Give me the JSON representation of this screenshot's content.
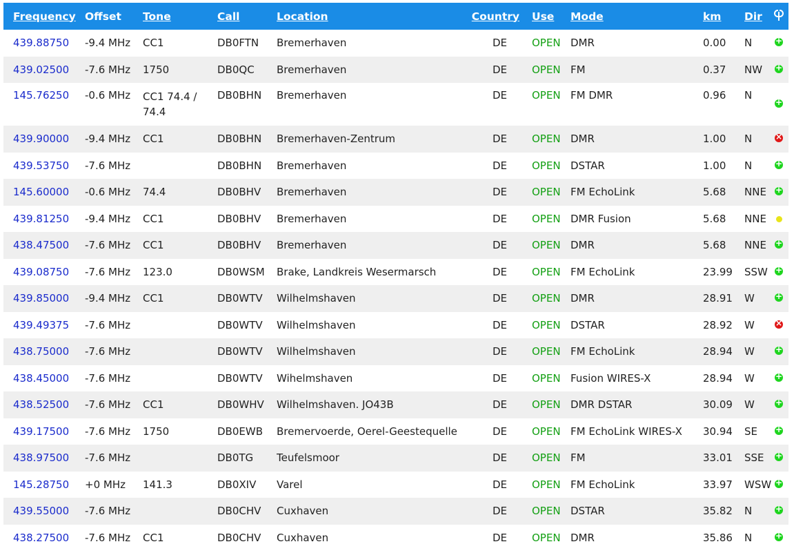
{
  "headers": {
    "frequency": "Frequency",
    "offset": "Offset",
    "tone": "Tone",
    "call": "Call",
    "location": "Location",
    "country": "Country",
    "use": "Use",
    "mode": "Mode",
    "km": "km",
    "dir": "Dir",
    "status_icon": "antenna-icon"
  },
  "colors": {
    "header_bg": "#1a8ce6",
    "link": "#1a2bcc",
    "open": "#14a014",
    "status_ok": "#1fd51f",
    "status_down": "#e01818",
    "status_warn": "#e8e41a",
    "row_alt": "#efefef"
  },
  "rows": [
    {
      "frequency": "439.88750",
      "offset": "-9.4 MHz",
      "tone": "CC1",
      "call": "DB0FTN",
      "location": "Bremerhaven",
      "country": "DE",
      "use": "OPEN",
      "mode": "DMR",
      "km": "0.00",
      "dir": "N",
      "status": "ok"
    },
    {
      "frequency": "439.02500",
      "offset": "-7.6 MHz",
      "tone": "1750",
      "call": "DB0QC",
      "location": "Bremerhaven",
      "country": "DE",
      "use": "OPEN",
      "mode": "FM",
      "km": "0.37",
      "dir": "NW",
      "status": "ok"
    },
    {
      "frequency": "145.76250",
      "offset": "-0.6 MHz",
      "tone": "CC1 74.4 / 74.4",
      "call": "DB0BHN",
      "location": "Bremerhaven",
      "country": "DE",
      "use": "OPEN",
      "mode": "FM DMR",
      "km": "0.96",
      "dir": "N",
      "status": "ok"
    },
    {
      "frequency": "439.90000",
      "offset": "-9.4 MHz",
      "tone": "CC1",
      "call": "DB0BHN",
      "location": "Bremerhaven-Zentrum",
      "country": "DE",
      "use": "OPEN",
      "mode": "DMR",
      "km": "1.00",
      "dir": "N",
      "status": "down"
    },
    {
      "frequency": "439.53750",
      "offset": "-7.6 MHz",
      "tone": "",
      "call": "DB0BHN",
      "location": "Bremerhaven",
      "country": "DE",
      "use": "OPEN",
      "mode": "DSTAR",
      "km": "1.00",
      "dir": "N",
      "status": "ok"
    },
    {
      "frequency": "145.60000",
      "offset": "-0.6 MHz",
      "tone": "74.4",
      "call": "DB0BHV",
      "location": "Bremerhaven",
      "country": "DE",
      "use": "OPEN",
      "mode": "FM EchoLink",
      "km": "5.68",
      "dir": "NNE",
      "status": "ok"
    },
    {
      "frequency": "439.81250",
      "offset": "-9.4 MHz",
      "tone": "CC1",
      "call": "DB0BHV",
      "location": "Bremerhaven",
      "country": "DE",
      "use": "OPEN",
      "mode": "DMR Fusion",
      "km": "5.68",
      "dir": "NNE",
      "status": "warn"
    },
    {
      "frequency": "438.47500",
      "offset": "-7.6 MHz",
      "tone": "CC1",
      "call": "DB0BHV",
      "location": "Bremerhaven",
      "country": "DE",
      "use": "OPEN",
      "mode": "DMR",
      "km": "5.68",
      "dir": "NNE",
      "status": "ok"
    },
    {
      "frequency": "439.08750",
      "offset": "-7.6 MHz",
      "tone": "123.0",
      "call": "DB0WSM",
      "location": "Brake, Landkreis Wesermarsch",
      "country": "DE",
      "use": "OPEN",
      "mode": "FM EchoLink",
      "km": "23.99",
      "dir": "SSW",
      "status": "ok"
    },
    {
      "frequency": "439.85000",
      "offset": "-9.4 MHz",
      "tone": "CC1",
      "call": "DB0WTV",
      "location": "Wilhelmshaven",
      "country": "DE",
      "use": "OPEN",
      "mode": "DMR",
      "km": "28.91",
      "dir": "W",
      "status": "ok"
    },
    {
      "frequency": "439.49375",
      "offset": "-7.6 MHz",
      "tone": "",
      "call": "DB0WTV",
      "location": "Wilhelmshaven",
      "country": "DE",
      "use": "OPEN",
      "mode": "DSTAR",
      "km": "28.92",
      "dir": "W",
      "status": "down"
    },
    {
      "frequency": "438.75000",
      "offset": "-7.6 MHz",
      "tone": "",
      "call": "DB0WTV",
      "location": "Wilhelmshaven",
      "country": "DE",
      "use": "OPEN",
      "mode": "FM EchoLink",
      "km": "28.94",
      "dir": "W",
      "status": "ok"
    },
    {
      "frequency": "438.45000",
      "offset": "-7.6 MHz",
      "tone": "",
      "call": "DB0WTV",
      "location": "Wihelmshaven",
      "country": "DE",
      "use": "OPEN",
      "mode": "Fusion WIRES-X",
      "km": "28.94",
      "dir": "W",
      "status": "ok"
    },
    {
      "frequency": "438.52500",
      "offset": "-7.6 MHz",
      "tone": "CC1",
      "call": "DB0WHV",
      "location": "Wilhelmshaven. JO43B",
      "country": "DE",
      "use": "OPEN",
      "mode": "DMR DSTAR",
      "km": "30.09",
      "dir": "W",
      "status": "ok"
    },
    {
      "frequency": "439.17500",
      "offset": "-7.6 MHz",
      "tone": "1750",
      "call": "DB0EWB",
      "location": "Bremervoerde, Oerel-Geestequelle",
      "country": "DE",
      "use": "OPEN",
      "mode": "FM EchoLink WIRES-X",
      "km": "30.94",
      "dir": "SE",
      "status": "ok"
    },
    {
      "frequency": "438.97500",
      "offset": "-7.6 MHz",
      "tone": "",
      "call": "DB0TG",
      "location": "Teufelsmoor",
      "country": "DE",
      "use": "OPEN",
      "mode": "FM",
      "km": "33.01",
      "dir": "SSE",
      "status": "ok"
    },
    {
      "frequency": "145.28750",
      "offset": "+0 MHz",
      "tone": "141.3",
      "call": "DB0XIV",
      "location": "Varel",
      "country": "DE",
      "use": "OPEN",
      "mode": "FM EchoLink",
      "km": "33.97",
      "dir": "WSW",
      "status": "ok"
    },
    {
      "frequency": "439.55000",
      "offset": "-7.6 MHz",
      "tone": "",
      "call": "DB0CHV",
      "location": "Cuxhaven",
      "country": "DE",
      "use": "OPEN",
      "mode": "DSTAR",
      "km": "35.82",
      "dir": "N",
      "status": "ok"
    },
    {
      "frequency": "438.27500",
      "offset": "-7.6 MHz",
      "tone": "CC1",
      "call": "DB0CHV",
      "location": "Cuxhaven",
      "country": "DE",
      "use": "OPEN",
      "mode": "DMR",
      "km": "35.86",
      "dir": "N",
      "status": "ok"
    }
  ]
}
